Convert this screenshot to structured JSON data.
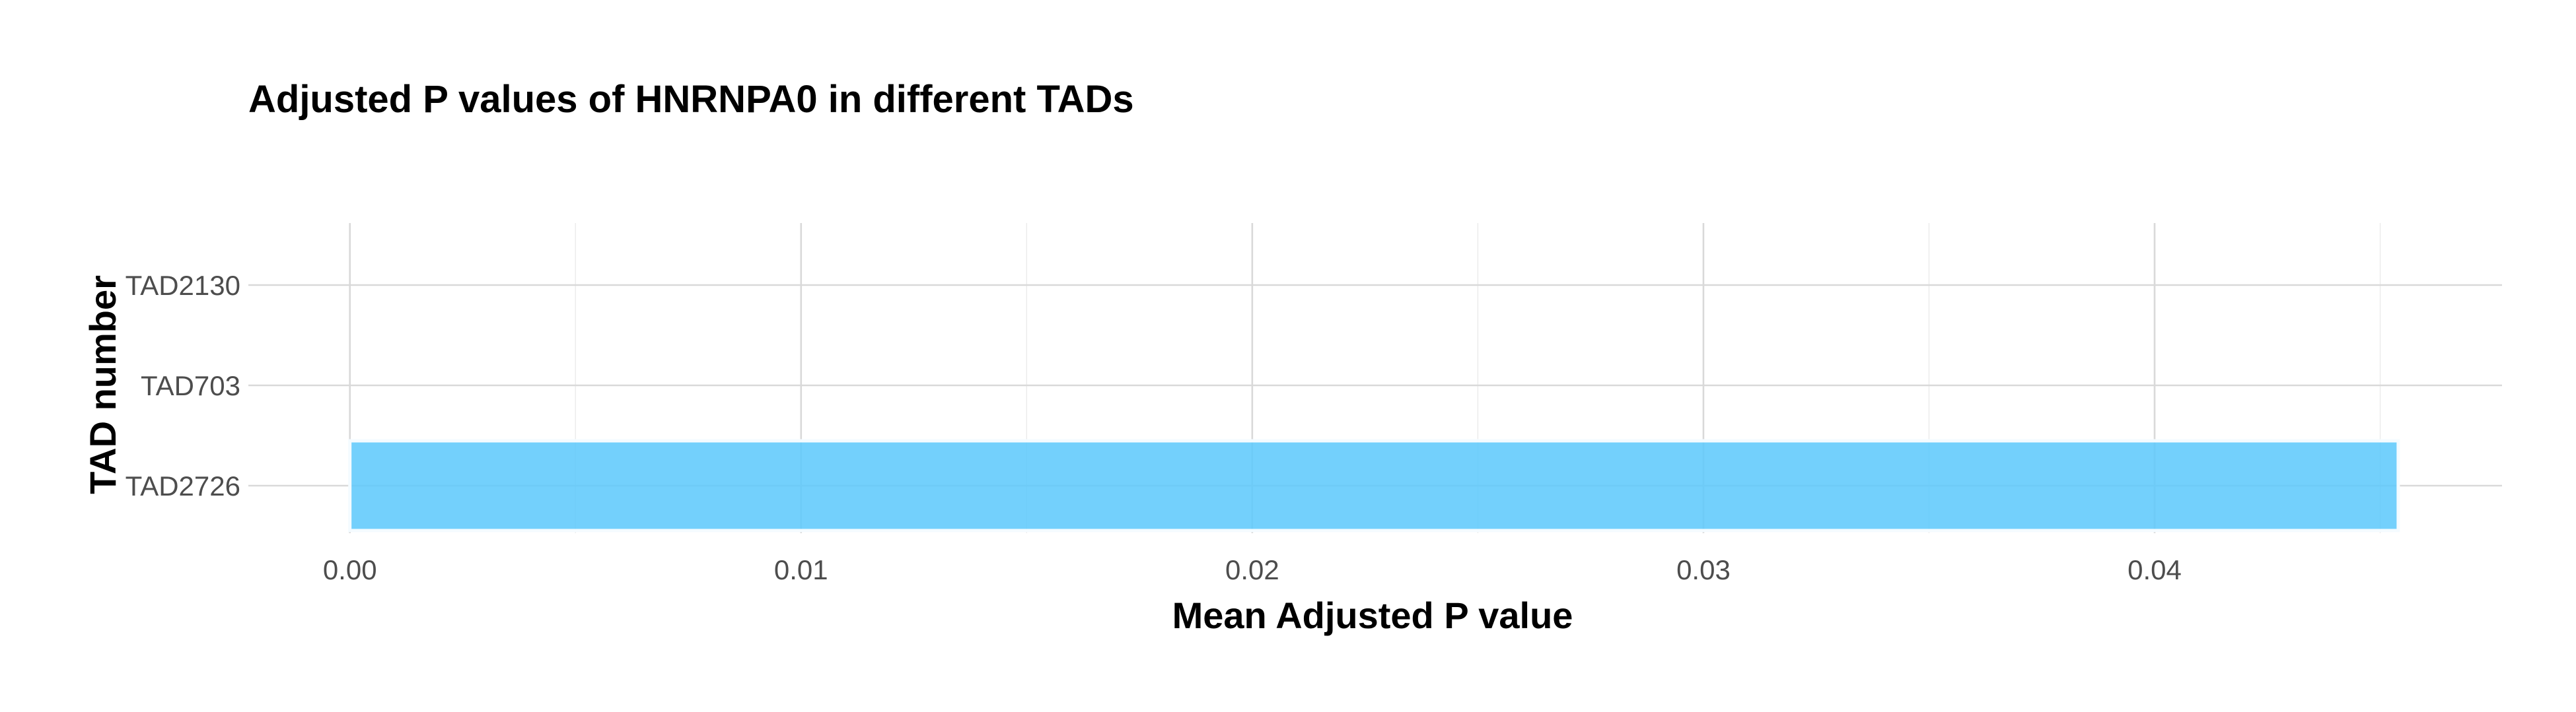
{
  "chart_data": {
    "type": "bar",
    "orientation": "horizontal",
    "title": "Adjusted P values of HNRNPA0 in different TADs",
    "xlabel": "Mean Adjusted P value",
    "ylabel": "TAD number",
    "categories": [
      "TAD2726",
      "TAD703",
      "TAD2130"
    ],
    "values": [
      0.0454,
      0.0,
      0.0
    ],
    "xlim": [
      -0.00225,
      0.0477
    ],
    "x_ticks": [
      0.0,
      0.01,
      0.02,
      0.03,
      0.04
    ],
    "x_tick_labels": [
      "0.00",
      "0.01",
      "0.02",
      "0.03",
      "0.04"
    ],
    "bar_color": "#5BC8FB",
    "bar_edge_color": "#F4FBFF",
    "grid": true,
    "legend": "none"
  }
}
